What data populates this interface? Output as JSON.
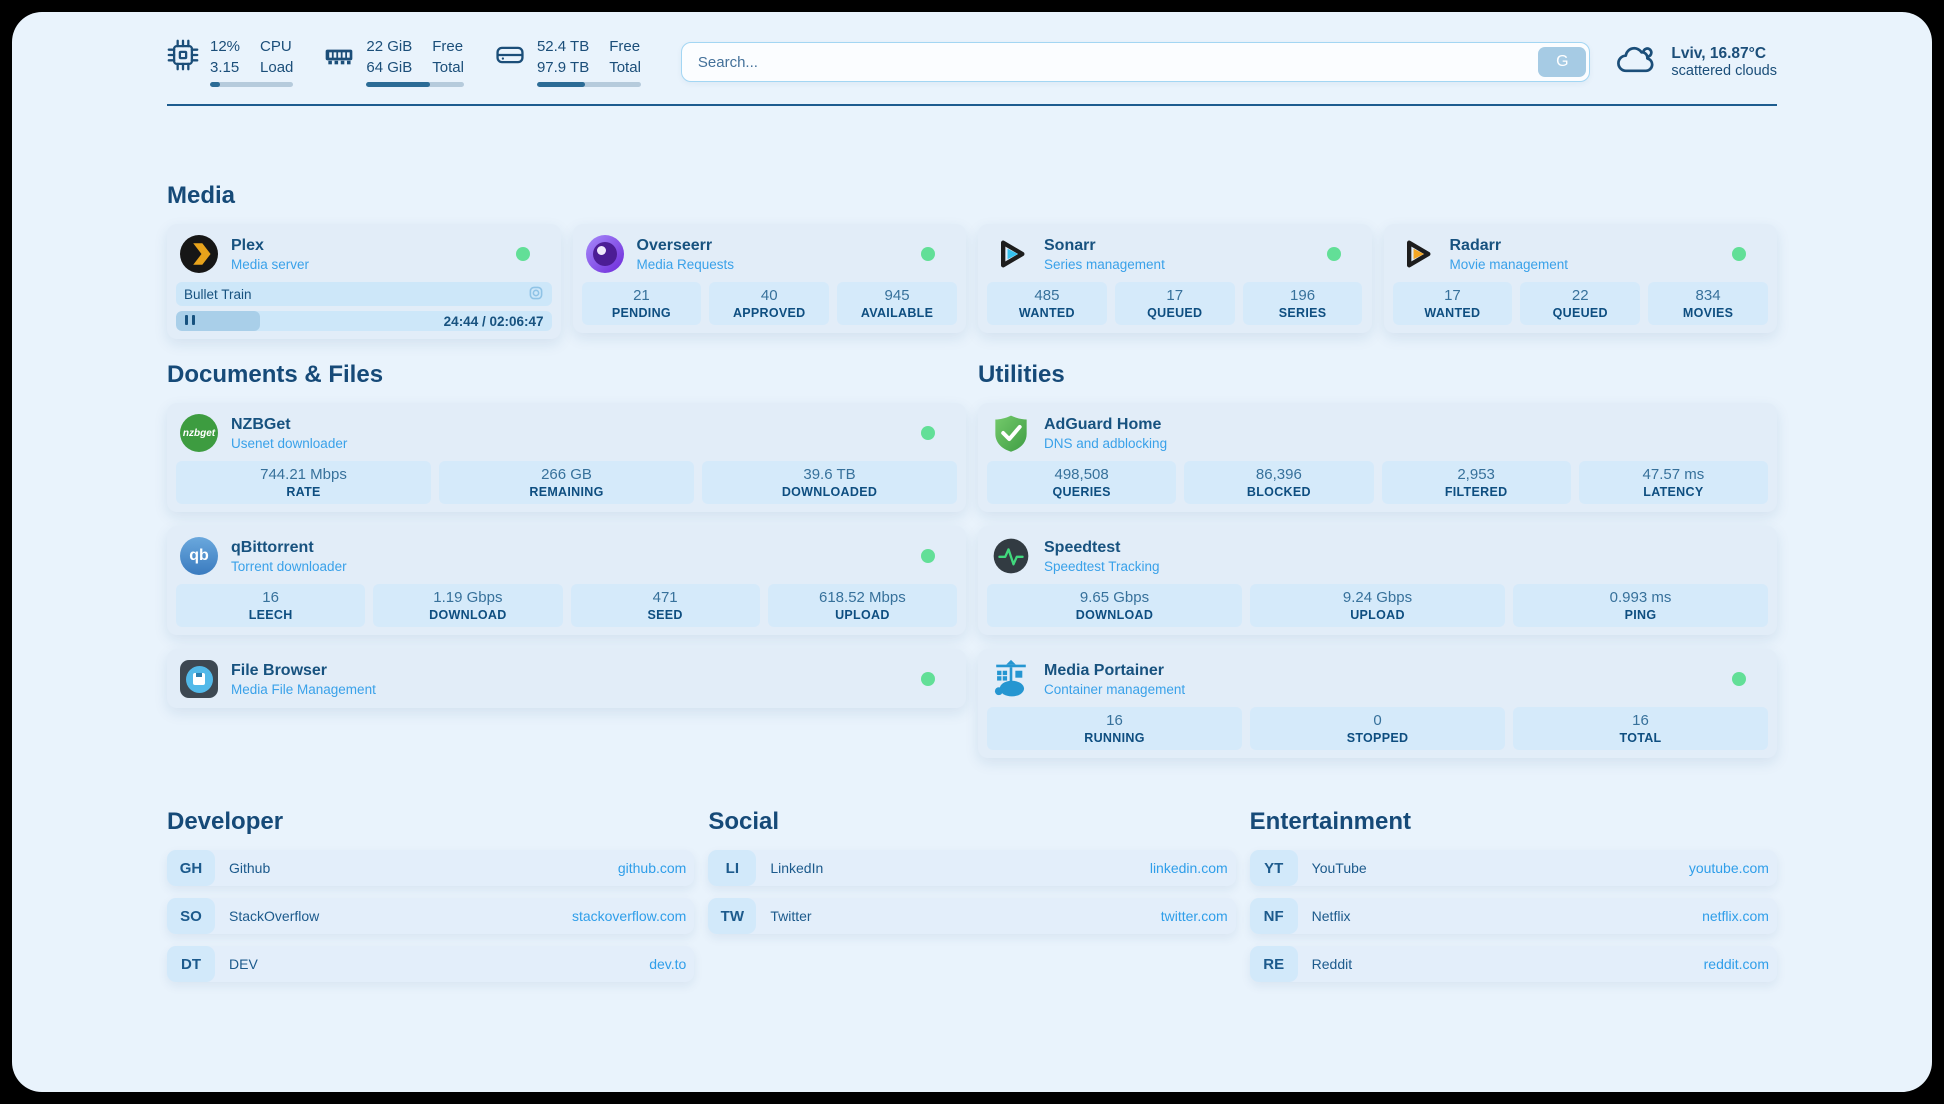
{
  "colors": {
    "page_bg": "#e9f3fc",
    "card_bg": "#e2edf8",
    "stat_bg": "#d5eafa",
    "accent_navy": "#17527f",
    "link_blue": "#39a1e9",
    "online_green": "#62df97"
  },
  "topbar": {
    "hardware": [
      {
        "name": "cpu",
        "value_top": "12%",
        "value_bottom": "3.15",
        "label_top": "CPU",
        "label_bottom": "Load",
        "progress_pct": 12
      },
      {
        "name": "memory",
        "value_top": "22 GiB",
        "value_bottom": "64 GiB",
        "label_top": "Free",
        "label_bottom": "Total",
        "progress_pct": 65
      },
      {
        "name": "storage",
        "value_top": "52.4 TB",
        "value_bottom": "97.9 TB",
        "label_top": "Free",
        "label_bottom": "Total",
        "progress_pct": 46
      }
    ],
    "search": {
      "placeholder": "Search...",
      "button_label": "G"
    },
    "weather": {
      "location": "Lviv, 16.87°C",
      "condition": "scattered clouds"
    }
  },
  "media": {
    "title": "Media",
    "plex": {
      "title": "Plex",
      "subtitle": "Media server",
      "status": "online",
      "now_playing": "Bullet Train",
      "time_display": "24:44 / 02:06:47",
      "progress_pct": 20
    },
    "overseerr": {
      "title": "Overseerr",
      "subtitle": "Media Requests",
      "status": "online",
      "stats": [
        {
          "value": "21",
          "label": "PENDING"
        },
        {
          "value": "40",
          "label": "APPROVED"
        },
        {
          "value": "945",
          "label": "AVAILABLE"
        }
      ]
    },
    "sonarr": {
      "title": "Sonarr",
      "subtitle": "Series management",
      "status": "online",
      "stats": [
        {
          "value": "485",
          "label": "WANTED"
        },
        {
          "value": "17",
          "label": "QUEUED"
        },
        {
          "value": "196",
          "label": "SERIES"
        }
      ]
    },
    "radarr": {
      "title": "Radarr",
      "subtitle": "Movie management",
      "status": "online",
      "stats": [
        {
          "value": "17",
          "label": "WANTED"
        },
        {
          "value": "22",
          "label": "QUEUED"
        },
        {
          "value": "834",
          "label": "MOVIES"
        }
      ]
    }
  },
  "documents": {
    "title": "Documents & Files",
    "nzbget": {
      "title": "NZBGet",
      "subtitle": "Usenet downloader",
      "status": "online",
      "icon_text": "nzbget",
      "stats": [
        {
          "value": "744.21 Mbps",
          "label": "RATE"
        },
        {
          "value": "266 GB",
          "label": "REMAINING"
        },
        {
          "value": "39.6 TB",
          "label": "DOWNLOADED"
        }
      ]
    },
    "qbittorrent": {
      "title": "qBittorrent",
      "subtitle": "Torrent downloader",
      "status": "online",
      "icon_text": "qb",
      "stats": [
        {
          "value": "16",
          "label": "LEECH"
        },
        {
          "value": "1.19 Gbps",
          "label": "DOWNLOAD"
        },
        {
          "value": "471",
          "label": "SEED"
        },
        {
          "value": "618.52 Mbps",
          "label": "UPLOAD"
        }
      ]
    },
    "filebrowser": {
      "title": "File Browser",
      "subtitle": "Media File Management",
      "status": "online"
    }
  },
  "utilities": {
    "title": "Utilities",
    "adguard": {
      "title": "AdGuard Home",
      "subtitle": "DNS and adblocking",
      "stats": [
        {
          "value": "498,508",
          "label": "QUERIES"
        },
        {
          "value": "86,396",
          "label": "BLOCKED"
        },
        {
          "value": "2,953",
          "label": "FILTERED"
        },
        {
          "value": "47.57 ms",
          "label": "LATENCY"
        }
      ]
    },
    "speedtest": {
      "title": "Speedtest",
      "subtitle": "Speedtest Tracking",
      "stats": [
        {
          "value": "9.65 Gbps",
          "label": "DOWNLOAD"
        },
        {
          "value": "9.24 Gbps",
          "label": "UPLOAD"
        },
        {
          "value": "0.993 ms",
          "label": "PING"
        }
      ]
    },
    "portainer": {
      "title": "Media Portainer",
      "subtitle": "Container management",
      "status": "online",
      "stats": [
        {
          "value": "16",
          "label": "RUNNING"
        },
        {
          "value": "0",
          "label": "STOPPED"
        },
        {
          "value": "16",
          "label": "TOTAL"
        }
      ]
    }
  },
  "links": {
    "developer": {
      "title": "Developer",
      "items": [
        {
          "abbr": "GH",
          "name": "Github",
          "url": "github.com"
        },
        {
          "abbr": "SO",
          "name": "StackOverflow",
          "url": "stackoverflow.com"
        },
        {
          "abbr": "DT",
          "name": "DEV",
          "url": "dev.to"
        }
      ]
    },
    "social": {
      "title": "Social",
      "items": [
        {
          "abbr": "LI",
          "name": "LinkedIn",
          "url": "linkedin.com"
        },
        {
          "abbr": "TW",
          "name": "Twitter",
          "url": "twitter.com"
        }
      ]
    },
    "entertainment": {
      "title": "Entertainment",
      "items": [
        {
          "abbr": "YT",
          "name": "YouTube",
          "url": "youtube.com"
        },
        {
          "abbr": "NF",
          "name": "Netflix",
          "url": "netflix.com"
        },
        {
          "abbr": "RE",
          "name": "Reddit",
          "url": "reddit.com"
        }
      ]
    }
  }
}
